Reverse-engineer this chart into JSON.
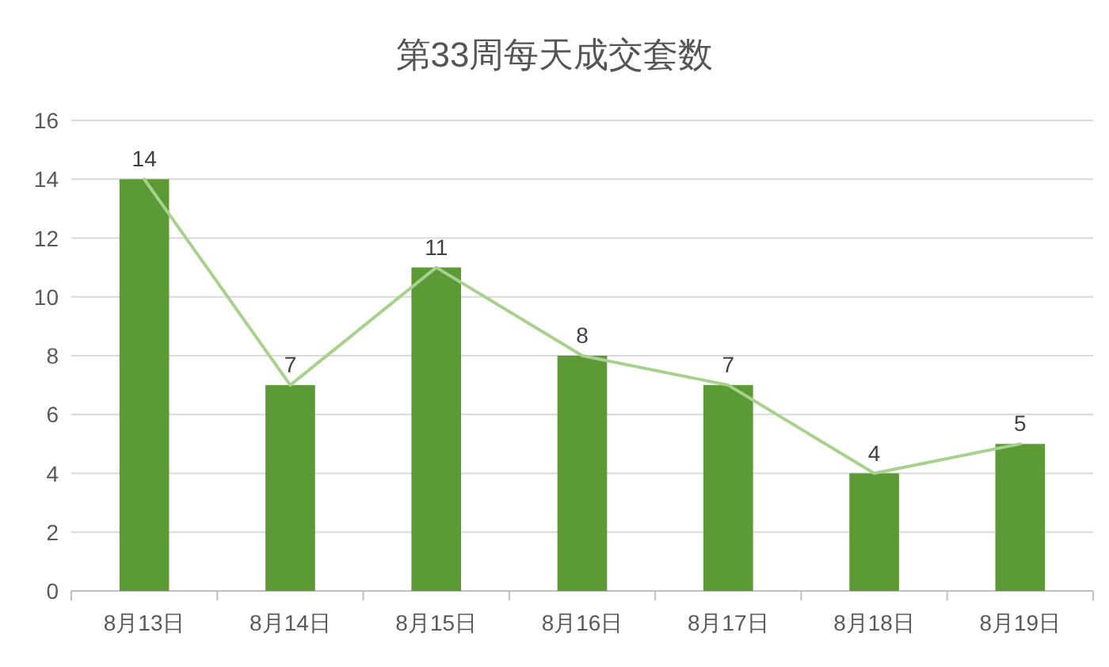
{
  "chart_data": {
    "type": "bar",
    "title": "第33周每天成交套数",
    "categories": [
      "8月13日",
      "8月14日",
      "8月15日",
      "8月16日",
      "8月17日",
      "8月18日",
      "8月19日"
    ],
    "series": [
      {
        "color": "#5b9a35",
        "values": [
          14,
          7,
          11,
          8,
          7,
          4,
          5
        ],
        "value_labels": [
          "14",
          "7",
          "11",
          "8",
          "7",
          "4",
          "5"
        ]
      },
      {
        "type": "line",
        "color": "#a9d18e",
        "values": [
          14,
          7,
          11,
          8,
          7,
          4,
          5
        ]
      }
    ],
    "ylim": [
      0,
      16
    ],
    "yticks": [
      0,
      2,
      4,
      6,
      8,
      10,
      12,
      14,
      16
    ],
    "grid": "y",
    "marker": "none",
    "line_style": "solid"
  }
}
